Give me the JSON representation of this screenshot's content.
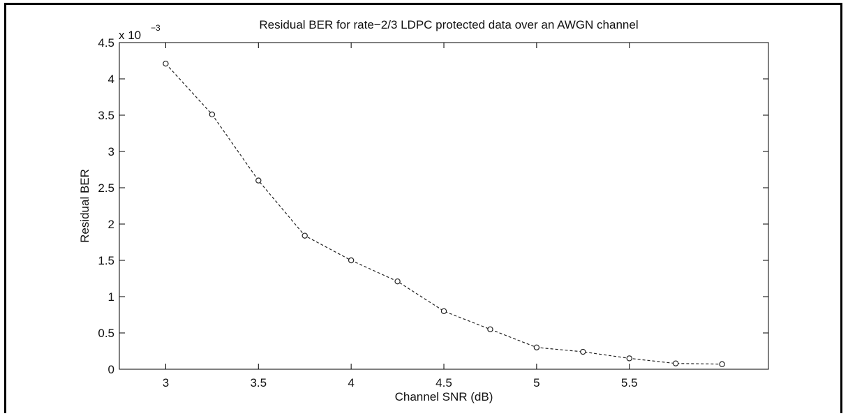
{
  "chart_data": {
    "type": "line",
    "title": "Residual BER for rate−2/3 LDPC protected data over an AWGN channel",
    "xlabel": "Channel SNR (dB)",
    "ylabel": "Residual BER",
    "y_multiplier": "x 10",
    "y_multiplier_exponent": "−3",
    "xlim": [
      2.75,
      6.25
    ],
    "ylim": [
      0,
      4.5
    ],
    "x_ticks": [
      3,
      3.5,
      4,
      4.5,
      5,
      5.5
    ],
    "x_tick_labels": [
      "3",
      "3.5",
      "4",
      "4.5",
      "5",
      "5.5"
    ],
    "y_ticks": [
      0,
      0.5,
      1,
      1.5,
      2,
      2.5,
      3,
      3.5,
      4,
      4.5
    ],
    "y_tick_labels": [
      "0",
      "0.5",
      "1",
      "1.5",
      "2",
      "2.5",
      "3",
      "3.5",
      "4",
      "4.5"
    ],
    "grid": false,
    "line_style": "dashed",
    "marker": "circle",
    "line_color": "#222222",
    "x": [
      3.0,
      3.25,
      3.5,
      3.75,
      4.0,
      4.25,
      4.5,
      4.75,
      5.0,
      5.25,
      5.5,
      5.75,
      6.0
    ],
    "y": [
      4.21,
      3.51,
      2.6,
      1.84,
      1.5,
      1.21,
      0.8,
      0.55,
      0.3,
      0.24,
      0.15,
      0.08,
      0.07
    ]
  }
}
